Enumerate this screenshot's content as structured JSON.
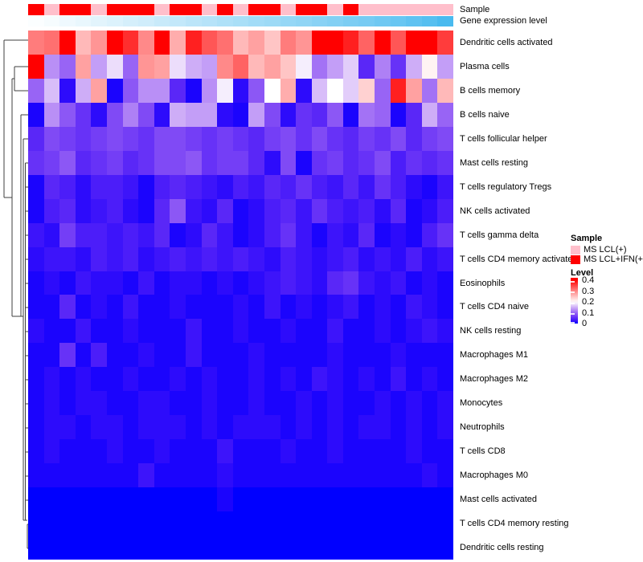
{
  "figure": {
    "kind": "clustered heatmap of immune cell gene expression levels",
    "background": "#ffffff"
  },
  "annotations": {
    "sample_label": "Sample",
    "gene_label": "Gene expression level",
    "sample_groups_by_column": [
      "MS LCL+IFN(+)",
      "MS LCL(+)",
      "MS LCL+IFN(+)",
      "MS LCL+IFN(+)",
      "MS LCL(+)",
      "MS LCL+IFN(+)",
      "MS LCL+IFN(+)",
      "MS LCL+IFN(+)",
      "MS LCL(+)",
      "MS LCL+IFN(+)",
      "MS LCL+IFN(+)",
      "MS LCL(+)",
      "MS LCL+IFN(+)",
      "MS LCL(+)",
      "MS LCL+IFN(+)",
      "MS LCL+IFN(+)",
      "MS LCL(+)",
      "MS LCL+IFN(+)",
      "MS LCL+IFN(+)",
      "MS LCL(+)",
      "MS LCL+IFN(+)",
      "MS LCL(+)",
      "MS LCL(+)",
      "MS LCL(+)",
      "MS LCL(+)",
      "MS LCL(+)",
      "MS LCL(+)"
    ],
    "gene_expression_fraction_by_column": [
      0.02,
      0.05,
      0.09,
      0.12,
      0.16,
      0.19,
      0.23,
      0.26,
      0.3,
      0.33,
      0.37,
      0.4,
      0.44,
      0.47,
      0.51,
      0.54,
      0.58,
      0.61,
      0.65,
      0.68,
      0.72,
      0.75,
      0.79,
      0.83,
      0.88,
      0.93,
      1.0
    ]
  },
  "legend": {
    "sample_title": "Sample",
    "items": [
      {
        "label": "MS LCL(+)",
        "color": "#ffbfcb"
      },
      {
        "label": "MS LCL+IFN(+)",
        "color": "#ff0000"
      }
    ],
    "level_title": "Level",
    "level_ticks": [
      "0.4",
      "0.3",
      "0.2",
      "0.1",
      "0"
    ]
  },
  "colors": {
    "sample_pink": "#ffbfcb",
    "sample_red": "#ff0000",
    "gene_bar_low": "#ffffff",
    "gene_bar_high": "#49baef",
    "heat_low": "#0000ff",
    "heat_mid": "#ffffff",
    "heat_high": "#ff0000",
    "dendrogram_stroke": "#3f3f3f"
  },
  "chart_data": {
    "type": "heatmap",
    "title": "",
    "xlabel": "",
    "ylabel": "",
    "legend_position": "right",
    "row_dendrogram": true,
    "column_labels_shown": false,
    "column_count": 27,
    "rows": [
      "Dendritic cells activated",
      "Plasma cells",
      "B cells memory",
      "B cells naive",
      "T cells follicular helper",
      "Mast cells resting",
      "T cells regulatory  Tregs",
      "NK cells activated",
      "T cells gamma delta",
      "T cells CD4 memory activated",
      "Eosinophils",
      "T cells CD4 naive",
      "NK cells resting",
      "Macrophages M1",
      "Macrophages M2",
      "Monocytes",
      "Neutrophils",
      "T cells CD8",
      "Macrophages M0",
      "Mast cells activated",
      "T cells CD4 memory resting",
      "Dendritic cells resting"
    ],
    "value_scale": {
      "min": 0,
      "mid": 0.2,
      "max": 0.4,
      "colors": [
        "#0000ff",
        "#ffffff",
        "#ff0000"
      ]
    },
    "values": [
      [
        0.31,
        0.32,
        0.42,
        0.26,
        0.29,
        0.42,
        0.37,
        0.3,
        0.41,
        0.27,
        0.38,
        0.34,
        0.32,
        0.26,
        0.28,
        0.25,
        0.31,
        0.29,
        0.42,
        0.43,
        0.38,
        0.33,
        0.41,
        0.34,
        0.44,
        0.41,
        0.36
      ],
      [
        0.42,
        0.13,
        0.1,
        0.28,
        0.14,
        0.18,
        0.1,
        0.29,
        0.28,
        0.18,
        0.15,
        0.14,
        0.3,
        0.33,
        0.26,
        0.28,
        0.25,
        0.19,
        0.11,
        0.14,
        0.17,
        0.05,
        0.12,
        0.06,
        0.15,
        0.21,
        0.14
      ],
      [
        0.1,
        0.16,
        0.02,
        0.15,
        0.28,
        0.01,
        0.09,
        0.13,
        0.13,
        0.05,
        0.01,
        0.13,
        0.19,
        0.02,
        0.09,
        0.2,
        0.27,
        0.02,
        0.16,
        0.2,
        0.17,
        0.24,
        0.1,
        0.38,
        0.28,
        0.11,
        0.26
      ],
      [
        0.01,
        0.13,
        0.09,
        0.06,
        0.02,
        0.08,
        0.12,
        0.08,
        0.02,
        0.15,
        0.14,
        0.14,
        0.02,
        0.01,
        0.14,
        0.08,
        0.02,
        0.06,
        0.05,
        0.09,
        0.01,
        0.11,
        0.1,
        0.01,
        0.05,
        0.15,
        0.1
      ],
      [
        0.05,
        0.08,
        0.07,
        0.06,
        0.07,
        0.08,
        0.07,
        0.06,
        0.08,
        0.08,
        0.07,
        0.06,
        0.07,
        0.06,
        0.05,
        0.07,
        0.08,
        0.06,
        0.08,
        0.06,
        0.05,
        0.07,
        0.06,
        0.08,
        0.05,
        0.07,
        0.08
      ],
      [
        0.06,
        0.07,
        0.09,
        0.05,
        0.06,
        0.07,
        0.05,
        0.06,
        0.08,
        0.08,
        0.09,
        0.06,
        0.07,
        0.07,
        0.05,
        0.02,
        0.08,
        0.01,
        0.06,
        0.07,
        0.05,
        0.06,
        0.08,
        0.04,
        0.06,
        0.05,
        0.06
      ],
      [
        0.01,
        0.05,
        0.04,
        0.02,
        0.04,
        0.04,
        0.03,
        0.01,
        0.04,
        0.05,
        0.04,
        0.03,
        0.02,
        0.04,
        0.03,
        0.05,
        0.04,
        0.06,
        0.04,
        0.03,
        0.05,
        0.03,
        0.06,
        0.04,
        0.02,
        0.01,
        0.03
      ],
      [
        0.01,
        0.04,
        0.05,
        0.02,
        0.03,
        0.04,
        0.02,
        0.01,
        0.05,
        0.09,
        0.03,
        0.02,
        0.05,
        0.01,
        0.02,
        0.04,
        0.05,
        0.03,
        0.06,
        0.04,
        0.03,
        0.04,
        0.02,
        0.05,
        0.01,
        0.02,
        0.04
      ],
      [
        0.03,
        0.02,
        0.07,
        0.04,
        0.04,
        0.03,
        0.04,
        0.03,
        0.05,
        0.01,
        0.02,
        0.05,
        0.03,
        0.01,
        0.02,
        0.04,
        0.06,
        0.03,
        0.01,
        0.03,
        0.02,
        0.05,
        0.01,
        0.02,
        0.01,
        0.04,
        0.06
      ],
      [
        0.02,
        0.03,
        0.03,
        0.02,
        0.04,
        0.03,
        0.04,
        0.02,
        0.03,
        0.04,
        0.03,
        0.04,
        0.03,
        0.04,
        0.03,
        0.02,
        0.04,
        0.03,
        0.02,
        0.03,
        0.04,
        0.02,
        0.03,
        0.02,
        0.04,
        0.02,
        0.03
      ],
      [
        0.01,
        0.02,
        0.01,
        0.03,
        0.02,
        0.02,
        0.01,
        0.03,
        0.01,
        0.02,
        0.02,
        0.01,
        0.02,
        0.01,
        0.02,
        0.03,
        0.04,
        0.03,
        0.02,
        0.05,
        0.06,
        0.03,
        0.02,
        0.03,
        0.01,
        0.02,
        0.01
      ],
      [
        0.01,
        0.01,
        0.05,
        0.01,
        0.02,
        0.01,
        0.03,
        0.01,
        0.01,
        0.02,
        0.01,
        0.01,
        0.01,
        0.02,
        0.01,
        0.03,
        0.01,
        0.02,
        0.01,
        0.02,
        0.03,
        0.01,
        0.02,
        0.01,
        0.03,
        0.02,
        0.01
      ],
      [
        0.02,
        0.01,
        0.01,
        0.03,
        0.01,
        0.01,
        0.02,
        0.01,
        0.01,
        0.01,
        0.03,
        0.01,
        0.01,
        0.02,
        0.01,
        0.01,
        0.02,
        0.01,
        0.01,
        0.03,
        0.01,
        0.01,
        0.02,
        0.01,
        0.02,
        0.03,
        0.02
      ],
      [
        0.01,
        0.01,
        0.06,
        0.01,
        0.04,
        0.01,
        0.01,
        0.02,
        0.01,
        0.01,
        0.03,
        0.01,
        0.01,
        0.01,
        0.02,
        0.01,
        0.01,
        0.01,
        0.01,
        0.02,
        0.01,
        0.01,
        0.01,
        0.02,
        0.01,
        0.01,
        0.01
      ],
      [
        0.01,
        0.02,
        0.01,
        0.02,
        0.01,
        0.01,
        0.02,
        0.01,
        0.01,
        0.02,
        0.01,
        0.02,
        0.01,
        0.01,
        0.02,
        0.01,
        0.02,
        0.01,
        0.03,
        0.02,
        0.01,
        0.02,
        0.01,
        0.03,
        0.01,
        0.02,
        0.01
      ],
      [
        0.01,
        0.02,
        0.01,
        0.02,
        0.02,
        0.01,
        0.01,
        0.02,
        0.02,
        0.01,
        0.01,
        0.02,
        0.01,
        0.01,
        0.02,
        0.01,
        0.01,
        0.02,
        0.01,
        0.02,
        0.01,
        0.01,
        0.02,
        0.01,
        0.02,
        0.01,
        0.02
      ],
      [
        0.01,
        0.02,
        0.02,
        0.01,
        0.02,
        0.02,
        0.01,
        0.02,
        0.02,
        0.02,
        0.01,
        0.02,
        0.01,
        0.02,
        0.02,
        0.02,
        0.01,
        0.02,
        0.01,
        0.02,
        0.01,
        0.02,
        0.02,
        0.01,
        0.02,
        0.01,
        0.02
      ],
      [
        0.01,
        0.02,
        0.01,
        0.01,
        0.01,
        0.02,
        0.01,
        0.01,
        0.02,
        0.01,
        0.01,
        0.01,
        0.03,
        0.01,
        0.01,
        0.01,
        0.02,
        0.01,
        0.01,
        0.02,
        0.01,
        0.01,
        0.01,
        0.01,
        0.02,
        0.01,
        0.01
      ],
      [
        0.01,
        0.01,
        0.01,
        0.01,
        0.01,
        0.01,
        0.01,
        0.03,
        0.01,
        0.01,
        0.01,
        0.01,
        0.02,
        0.01,
        0.01,
        0.01,
        0.01,
        0.01,
        0.01,
        0.01,
        0.01,
        0.01,
        0.01,
        0.01,
        0.01,
        0.02,
        0.01
      ],
      [
        0,
        0,
        0,
        0,
        0,
        0,
        0,
        0,
        0,
        0,
        0,
        0,
        0.01,
        0,
        0,
        0,
        0,
        0,
        0,
        0,
        0,
        0,
        0,
        0,
        0,
        0,
        0
      ],
      [
        0,
        0,
        0,
        0,
        0,
        0,
        0,
        0,
        0,
        0,
        0,
        0,
        0,
        0,
        0,
        0,
        0,
        0,
        0,
        0,
        0,
        0,
        0,
        0,
        0,
        0,
        0
      ],
      [
        0,
        0,
        0,
        0,
        0,
        0,
        0,
        0,
        0,
        0,
        0,
        0,
        0,
        0,
        0,
        0,
        0,
        0,
        0,
        0,
        0,
        0,
        0,
        0,
        0,
        0,
        0
      ]
    ]
  }
}
